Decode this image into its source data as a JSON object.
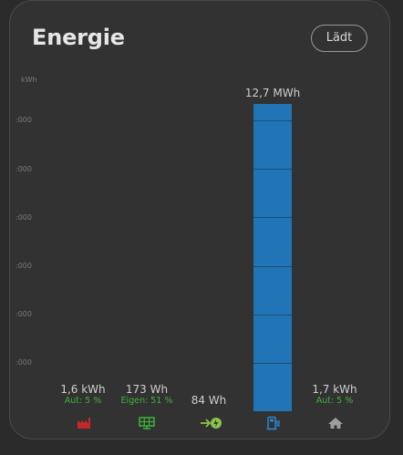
{
  "header": {
    "title": "Energie",
    "status_label": "Lädt"
  },
  "axis": {
    "unit": "kWh",
    "ticks": [
      ":000",
      ":000",
      ":000",
      ":000",
      ":000",
      ":000"
    ]
  },
  "columns": [
    {
      "value": "1,6 kWh",
      "sub": "Aut: 5 %",
      "icon": "factory-icon",
      "color": "#c62828"
    },
    {
      "value": "173 Wh",
      "sub": "Eigen: 51 %",
      "icon": "solar-panel-icon",
      "color": "#3fb13b"
    },
    {
      "value": "84 Wh",
      "sub": "",
      "icon": "grid-feed-icon",
      "color": "#8bc34a"
    },
    {
      "value": "12,7 MWh",
      "sub": "",
      "icon": "ev-charger-icon",
      "color": "#2175b6"
    },
    {
      "value": "1,7 kWh",
      "sub": "Aut: 5 %",
      "icon": "home-icon",
      "color": "#9e9e9e"
    }
  ],
  "colors": {
    "bar": "#2175b6",
    "accent_green": "#3fb13b"
  }
}
